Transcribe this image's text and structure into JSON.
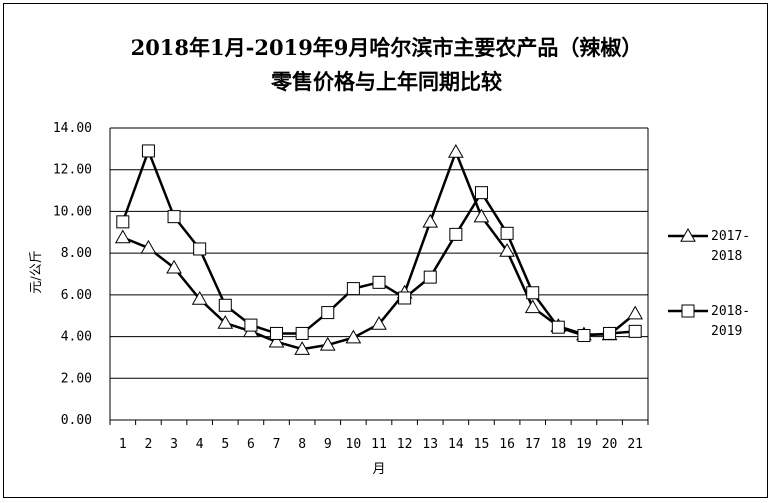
{
  "chart_data": {
    "type": "line",
    "title_line1": "2018年1月-2019年9月哈尔滨市主要农产品（辣椒）",
    "title_line2": "零售价格与上年同期比较",
    "xlabel": "月",
    "ylabel": "元/公斤",
    "categories": [
      "1",
      "2",
      "3",
      "4",
      "5",
      "6",
      "7",
      "8",
      "9",
      "10",
      "11",
      "12",
      "13",
      "14",
      "15",
      "16",
      "17",
      "18",
      "19",
      "20",
      "21"
    ],
    "ylim": [
      0,
      14
    ],
    "yticks": [
      "0.00",
      "2.00",
      "4.00",
      "6.00",
      "8.00",
      "10.00",
      "12.00",
      "14.00"
    ],
    "grid": true,
    "legend_position": "right",
    "series": [
      {
        "name_line1": "2017-",
        "name_line2": "2018",
        "marker": "triangle",
        "color": "#000000",
        "values": [
          8.75,
          8.25,
          7.3,
          5.8,
          4.65,
          4.25,
          3.75,
          3.4,
          3.6,
          3.95,
          4.6,
          6.1,
          9.5,
          12.85,
          9.75,
          8.1,
          5.4,
          4.5,
          4.1,
          4.1,
          5.1
        ]
      },
      {
        "name_line1": "2018-",
        "name_line2": "2019",
        "marker": "square",
        "color": "#000000",
        "values": [
          9.5,
          12.9,
          9.75,
          8.2,
          5.5,
          4.55,
          4.15,
          4.15,
          5.15,
          6.3,
          6.6,
          5.85,
          6.85,
          8.9,
          10.9,
          8.95,
          6.1,
          4.45,
          4.05,
          4.15,
          4.25
        ]
      }
    ]
  }
}
